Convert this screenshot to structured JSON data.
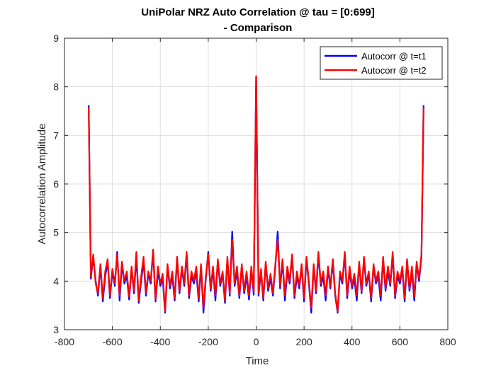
{
  "chart_data": {
    "type": "line",
    "title": "UniPolar NRZ Auto Correlation @ tau = [0:699]",
    "subtitle": "- Comparison",
    "xlabel": "Time",
    "ylabel": "Autocorrelation Amplitude",
    "xlim": [
      -800,
      800
    ],
    "ylim": [
      3,
      9
    ],
    "xticks": [
      -800,
      -600,
      -400,
      -200,
      0,
      200,
      400,
      600,
      800
    ],
    "yticks": [
      3,
      4,
      5,
      6,
      7,
      8,
      9
    ],
    "grid": true,
    "legend_position": "top-right",
    "series": [
      {
        "name": "Autocorr @ t=t1",
        "color": "#0000ff",
        "x": [
          -699,
          -690,
          -680,
          -670,
          -660,
          -650,
          -640,
          -630,
          -620,
          -610,
          -600,
          -590,
          -580,
          -570,
          -560,
          -550,
          -540,
          -530,
          -520,
          -510,
          -500,
          -490,
          -480,
          -470,
          -460,
          -450,
          -440,
          -430,
          -420,
          -410,
          -400,
          -390,
          -380,
          -370,
          -360,
          -350,
          -340,
          -330,
          -320,
          -310,
          -300,
          -290,
          -280,
          -270,
          -260,
          -250,
          -240,
          -230,
          -220,
          -210,
          -200,
          -190,
          -180,
          -170,
          -160,
          -150,
          -140,
          -130,
          -120,
          -110,
          -100,
          -90,
          -80,
          -70,
          -60,
          -50,
          -40,
          -30,
          -20,
          -10,
          0,
          10,
          20,
          30,
          40,
          50,
          60,
          70,
          80,
          90,
          100,
          110,
          120,
          130,
          140,
          150,
          160,
          170,
          180,
          190,
          200,
          210,
          220,
          230,
          240,
          250,
          260,
          270,
          280,
          290,
          300,
          310,
          320,
          330,
          340,
          350,
          360,
          370,
          380,
          390,
          400,
          410,
          420,
          430,
          440,
          450,
          460,
          470,
          480,
          490,
          500,
          510,
          520,
          530,
          540,
          550,
          560,
          570,
          580,
          590,
          600,
          610,
          620,
          630,
          640,
          650,
          660,
          670,
          680,
          690,
          699
        ],
        "y": [
          7.62,
          4.05,
          4.5,
          4.0,
          3.7,
          4.3,
          3.58,
          4.1,
          4.4,
          3.65,
          4.2,
          3.9,
          4.6,
          3.6,
          4.35,
          3.95,
          4.1,
          3.62,
          4.25,
          3.75,
          4.5,
          3.55,
          4.0,
          4.4,
          3.7,
          4.15,
          3.95,
          4.6,
          3.58,
          4.2,
          3.9,
          4.05,
          3.35,
          4.3,
          3.85,
          4.1,
          3.6,
          4.45,
          3.75,
          4.25,
          3.9,
          4.55,
          3.65,
          4.1,
          3.95,
          4.2,
          3.58,
          4.3,
          3.35,
          4.05,
          4.6,
          3.8,
          4.25,
          3.6,
          4.4,
          3.9,
          4.15,
          3.55,
          4.45,
          3.7,
          5.02,
          3.9,
          4.2,
          3.65,
          4.3,
          3.75,
          4.1,
          3.62,
          4.25,
          3.72,
          8.2,
          3.7,
          4.2,
          3.6,
          4.35,
          3.8,
          4.05,
          3.7,
          4.3,
          5.02,
          3.85,
          4.4,
          3.6,
          4.2,
          3.95,
          4.5,
          3.65,
          4.1,
          3.85,
          4.3,
          3.58,
          4.45,
          3.95,
          3.35,
          4.3,
          3.75,
          4.55,
          3.9,
          4.1,
          3.6,
          4.25,
          3.85,
          4.4,
          3.7,
          3.35,
          4.15,
          3.95,
          4.55,
          3.65,
          4.2,
          3.85,
          4.05,
          3.6,
          4.35,
          3.75,
          4.45,
          3.9,
          4.15,
          3.58,
          4.3,
          3.95,
          4.1,
          3.6,
          4.45,
          3.8,
          4.2,
          3.9,
          4.55,
          3.65,
          4.1,
          3.95,
          4.25,
          3.58,
          4.4,
          3.8,
          4.2,
          3.6,
          4.35,
          4.0,
          4.5,
          7.62
        ]
      },
      {
        "name": "Autocorr @ t=t2",
        "color": "#ff0000",
        "x": [
          -699,
          -690,
          -680,
          -670,
          -660,
          -650,
          -640,
          -630,
          -620,
          -610,
          -600,
          -590,
          -580,
          -570,
          -560,
          -550,
          -540,
          -530,
          -520,
          -510,
          -500,
          -490,
          -480,
          -470,
          -460,
          -450,
          -440,
          -430,
          -420,
          -410,
          -400,
          -390,
          -380,
          -370,
          -360,
          -350,
          -340,
          -330,
          -320,
          -310,
          -300,
          -290,
          -280,
          -270,
          -260,
          -250,
          -240,
          -230,
          -220,
          -210,
          -200,
          -190,
          -180,
          -170,
          -160,
          -150,
          -140,
          -130,
          -120,
          -110,
          -100,
          -90,
          -80,
          -70,
          -60,
          -50,
          -40,
          -30,
          -20,
          -10,
          0,
          10,
          20,
          30,
          40,
          50,
          60,
          70,
          80,
          90,
          100,
          110,
          120,
          130,
          140,
          150,
          160,
          170,
          180,
          190,
          200,
          210,
          220,
          230,
          240,
          250,
          260,
          270,
          280,
          290,
          300,
          310,
          320,
          330,
          340,
          350,
          360,
          370,
          380,
          390,
          400,
          410,
          420,
          430,
          440,
          450,
          460,
          470,
          480,
          490,
          500,
          510,
          520,
          530,
          540,
          550,
          560,
          570,
          580,
          590,
          600,
          610,
          620,
          630,
          640,
          650,
          660,
          670,
          680,
          690,
          699
        ],
        "y": [
          7.58,
          4.1,
          4.55,
          3.95,
          3.75,
          4.35,
          3.65,
          4.2,
          4.45,
          3.7,
          4.25,
          3.95,
          4.55,
          3.7,
          4.4,
          4.0,
          4.2,
          3.68,
          4.3,
          3.8,
          4.6,
          3.6,
          4.1,
          4.5,
          3.75,
          4.2,
          4.0,
          4.65,
          3.62,
          4.3,
          3.95,
          4.15,
          3.38,
          4.35,
          3.9,
          4.2,
          3.65,
          4.5,
          3.8,
          4.3,
          3.95,
          4.6,
          3.7,
          4.2,
          4.0,
          4.3,
          3.65,
          4.35,
          3.45,
          4.1,
          4.55,
          3.85,
          4.3,
          3.7,
          4.45,
          3.95,
          4.2,
          3.6,
          4.5,
          3.75,
          4.85,
          3.95,
          4.3,
          3.7,
          4.35,
          3.8,
          4.2,
          3.7,
          4.3,
          3.78,
          8.22,
          3.75,
          4.25,
          3.65,
          4.4,
          3.85,
          4.15,
          3.75,
          4.35,
          4.85,
          3.9,
          4.45,
          3.7,
          4.3,
          4.0,
          4.55,
          3.7,
          4.2,
          3.9,
          4.35,
          3.65,
          4.5,
          4.0,
          3.45,
          4.35,
          3.8,
          4.6,
          3.95,
          4.2,
          3.7,
          4.3,
          3.9,
          4.45,
          3.75,
          3.38,
          4.2,
          4.0,
          4.6,
          3.7,
          4.3,
          3.9,
          4.15,
          3.7,
          4.4,
          3.8,
          4.5,
          3.95,
          4.2,
          3.65,
          4.35,
          4.0,
          4.2,
          3.7,
          4.5,
          3.85,
          4.3,
          3.95,
          4.6,
          3.7,
          4.2,
          4.0,
          4.3,
          3.65,
          4.45,
          3.85,
          4.3,
          3.68,
          4.4,
          4.05,
          4.55,
          7.58
        ]
      }
    ]
  }
}
